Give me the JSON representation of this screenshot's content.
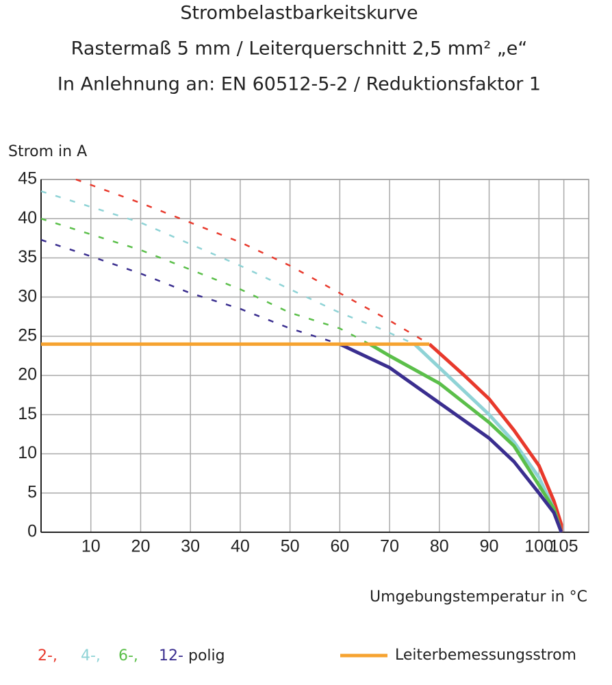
{
  "chart_data": {
    "type": "line",
    "title": "Strombelastbarkeitskurve",
    "subtitle": "Rastermaß 5 mm / Leiterquerschnitt 2,5 mm² „e“",
    "subtitle2": "In Anlehnung an: EN 60512-5-2 / Reduktionsfaktor 1",
    "y_label": "Strom in A",
    "x_label": "Umgebungstemperatur in °C",
    "legend_suffix": "polig",
    "xlim": [
      0,
      110
    ],
    "ylim": [
      0,
      45
    ],
    "xticks": [
      10,
      20,
      30,
      40,
      50,
      60,
      70,
      80,
      90,
      100,
      105
    ],
    "yticks": [
      0,
      5,
      10,
      15,
      20,
      25,
      30,
      35,
      40,
      45
    ],
    "grid": true,
    "series": [
      {
        "name": "2-,",
        "color": "#e8392c",
        "x": [
          7,
          20,
          30,
          40,
          50,
          60,
          70,
          78,
          85,
          90,
          95,
          100,
          103,
          104.5,
          104.5
        ],
        "values": [
          45,
          42,
          39.5,
          37,
          34,
          30.5,
          27,
          24,
          20,
          17,
          13,
          8.5,
          4,
          1,
          0
        ]
      },
      {
        "name": "4-,",
        "color": "#8fd3d6",
        "x": [
          0,
          20,
          40,
          60,
          68,
          75,
          80,
          90,
          95,
          100,
          103,
          104.5
        ],
        "values": [
          43.5,
          39.5,
          34,
          28,
          26,
          24,
          21,
          15,
          11.5,
          7,
          3,
          0
        ]
      },
      {
        "name": "6-,",
        "color": "#5bbf4a",
        "x": [
          0,
          20,
          40,
          50,
          60,
          66,
          70,
          80,
          90,
          95,
          100,
          103,
          104.5
        ],
        "values": [
          40,
          36,
          31,
          28,
          26,
          24,
          22.5,
          19,
          14,
          11,
          6,
          3,
          0
        ]
      },
      {
        "name": "12-",
        "color": "#3a2e8f",
        "x": [
          0,
          10,
          20,
          30,
          40,
          50,
          60,
          70,
          80,
          90,
          95,
          100,
          103,
          104.5
        ],
        "values": [
          37.3,
          35.2,
          33,
          30.5,
          28.5,
          26,
          24,
          21,
          16.5,
          12,
          9,
          5,
          2.5,
          0
        ]
      }
    ],
    "reference_line": {
      "name": "Leiterbemessungsstrom",
      "color": "#f6a330",
      "x": [
        0,
        78
      ],
      "values": [
        24,
        24
      ]
    }
  }
}
